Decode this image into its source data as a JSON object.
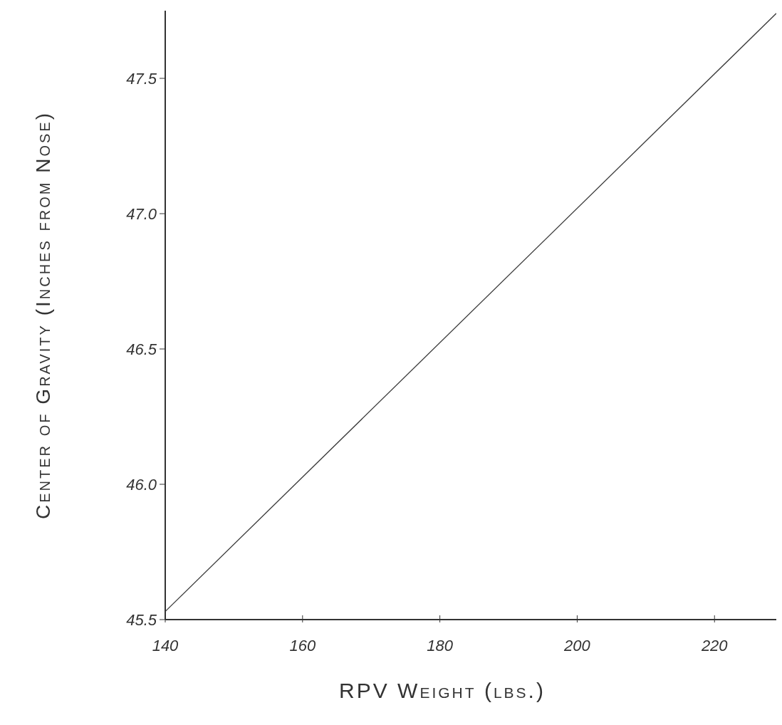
{
  "chart_data": {
    "type": "line",
    "xlabel": "RPV Weight (lbs.)",
    "ylabel": "Center of Gravity (Inches from Nose)",
    "x": [
      140,
      229
    ],
    "series": [
      {
        "color": "#3a3a3a",
        "values": [
          45.53,
          47.74
        ]
      }
    ],
    "xlim": [
      140,
      229
    ],
    "xticks": [
      140,
      160,
      180,
      200,
      220
    ],
    "ylim": [
      45.5,
      47.75
    ],
    "yticks": [
      {
        "value": 45.5,
        "label": "45.5"
      },
      {
        "value": 46,
        "label": "46.0"
      },
      {
        "value": 46.5,
        "label": "46.5"
      },
      {
        "value": 47,
        "label": "47.0"
      },
      {
        "value": 47.5,
        "label": "47.5"
      }
    ],
    "grid": false,
    "marker": "none",
    "line_style": "solid"
  }
}
